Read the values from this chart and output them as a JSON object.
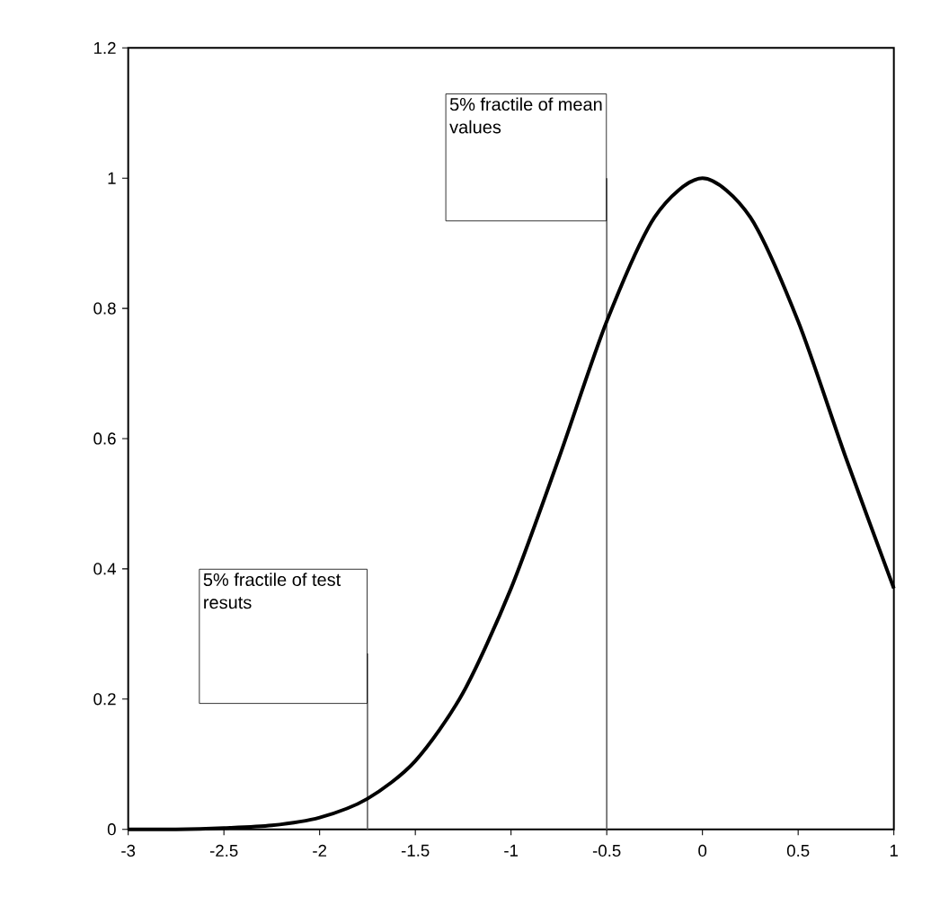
{
  "chart_data": {
    "type": "line",
    "x": [
      -3,
      -2.75,
      -2.5,
      -2.25,
      -2,
      -1.75,
      -1.5,
      -1.25,
      -1,
      -0.75,
      -0.5,
      -0.25,
      0,
      0.25,
      0.5,
      0.75,
      1
    ],
    "series": [
      {
        "color": "#000000",
        "values": [
          0,
          0,
          0.002,
          0.006,
          0.018,
          0.047,
          0.105,
          0.21,
          0.37,
          0.57,
          0.78,
          0.94,
          1.0,
          0.94,
          0.78,
          0.57,
          0.37
        ]
      }
    ],
    "xlim": [
      -3,
      1
    ],
    "ylim": [
      0,
      1.2
    ],
    "xticks": [
      -3,
      -2.5,
      -2,
      -1.5,
      -1,
      -0.5,
      0,
      0.5,
      1
    ],
    "yticks": [
      0,
      0.2,
      0.4,
      0.6,
      0.8,
      1,
      1.2
    ],
    "ref_lines": [
      {
        "axis": "x",
        "value": -1.75,
        "label": "5% fractile of test resuts",
        "color": "#606060"
      },
      {
        "axis": "x",
        "value": -0.5,
        "label": "5% fractile of mean values",
        "color": "#606060"
      }
    ],
    "grid": false,
    "marker": "none",
    "line_style": "solid"
  }
}
